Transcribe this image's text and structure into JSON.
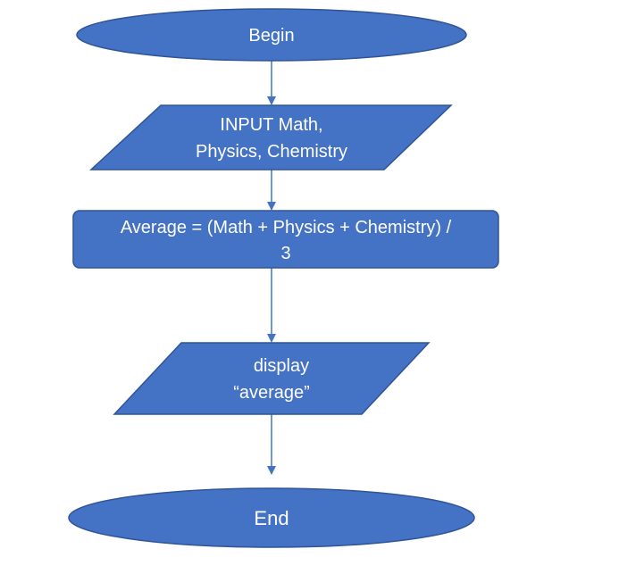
{
  "flowchart": {
    "begin": {
      "label": "Begin"
    },
    "input": {
      "line1": "INPUT Math,",
      "line2": "Physics, Chemistry"
    },
    "process": {
      "line1": "Average = (Math + Physics + Chemistry) /",
      "line2": "3"
    },
    "display": {
      "line1": "display",
      "line2": "“average”"
    },
    "end": {
      "label": "End"
    }
  },
  "colors": {
    "fill": "#4472c4",
    "stroke": "#2f5597",
    "text": "#ffffff"
  }
}
